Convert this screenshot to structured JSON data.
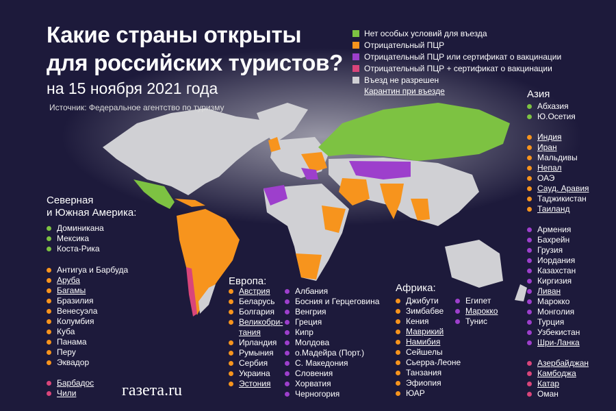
{
  "header": {
    "title": [
      "Какие страны открыты",
      "для российских туристов?"
    ],
    "date": "на 15 ноября 2021 года",
    "source": "Источник: Федеральное агентство по туризму"
  },
  "legend": {
    "items": [
      {
        "label": "Нет особых условий для въезда",
        "color": "#7dc242"
      },
      {
        "label": "Отрицательный ПЦР",
        "color": "#f7941d"
      },
      {
        "label": "Отрицательный ПЦР или сертификат о вакцинации",
        "color": "#9d3fcc"
      },
      {
        "label": "Отрицательный ПЦР + сертификат о вакцинации",
        "color": "#d9457a"
      },
      {
        "label": "Въезд не разрешен",
        "color": "#d0d0d4"
      }
    ],
    "quarantine_note": "Карантин при въезде"
  },
  "regions": [
    {
      "title": [
        "Северная",
        "и Южная Америка:"
      ],
      "groups": [
        {
          "color": "#7dc242",
          "countries": [
            {
              "name": "Доминикана"
            },
            {
              "name": "Мексика"
            },
            {
              "name": "Коста-Рика"
            }
          ]
        },
        {
          "color": "#f7941d",
          "countries": [
            {
              "name": "Антигуа и Барбуда"
            },
            {
              "name": "Аруба",
              "quarantine": true
            },
            {
              "name": "Багамы",
              "quarantine": true
            },
            {
              "name": "Бразилия"
            },
            {
              "name": "Венесуэла"
            },
            {
              "name": "Колумбия"
            },
            {
              "name": "Куба"
            },
            {
              "name": "Панама"
            },
            {
              "name": "Перу"
            },
            {
              "name": "Эквадор"
            }
          ]
        },
        {
          "color": "#d9457a",
          "countries": [
            {
              "name": "Барбадос",
              "quarantine": true
            },
            {
              "name": "Чили",
              "quarantine": true
            }
          ]
        }
      ]
    },
    {
      "title": [
        "Европа:"
      ],
      "groups": [
        {
          "color": "#f7941d",
          "countries": [
            {
              "name": "Австрия",
              "quarantine": true
            },
            {
              "name": "Беларусь"
            },
            {
              "name": "Болгария"
            },
            {
              "name": "Великобри-тания",
              "quarantine": true
            },
            {
              "name": "Ирландия"
            },
            {
              "name": "Румыния"
            },
            {
              "name": "Сербия"
            },
            {
              "name": "Украина"
            },
            {
              "name": "Эстония",
              "quarantine": true
            }
          ]
        },
        {
          "color": "#9d3fcc",
          "countries": [
            {
              "name": "Албания"
            },
            {
              "name": "Босния и Герцеговина"
            },
            {
              "name": "Венгрия"
            },
            {
              "name": "Греция"
            },
            {
              "name": "Кипр"
            },
            {
              "name": "Молдова"
            },
            {
              "name": "о.Мадейра (Порт.)"
            },
            {
              "name": "С. Македония"
            },
            {
              "name": "Словения"
            },
            {
              "name": "Хорватия"
            },
            {
              "name": "Черногория"
            }
          ]
        }
      ]
    },
    {
      "title": [
        "Африка:"
      ],
      "groups": [
        {
          "color": "#f7941d",
          "countries": [
            {
              "name": "Джибути"
            },
            {
              "name": "Зимбабве"
            },
            {
              "name": "Кения"
            },
            {
              "name": "Маврикий",
              "quarantine": true
            },
            {
              "name": "Намибия",
              "quarantine": true
            },
            {
              "name": "Сейшелы"
            },
            {
              "name": "Сьерра-Леоне"
            },
            {
              "name": "Танзания"
            },
            {
              "name": "Эфиопия"
            },
            {
              "name": "ЮАР"
            }
          ]
        },
        {
          "color": "#9d3fcc",
          "countries": [
            {
              "name": "Египет"
            },
            {
              "name": "Марокко",
              "quarantine": true
            },
            {
              "name": "Тунис"
            }
          ]
        }
      ]
    },
    {
      "title": [
        "Азия"
      ],
      "groups": [
        {
          "color": "#7dc242",
          "countries": [
            {
              "name": "Абхазия"
            },
            {
              "name": "Ю.Осетия"
            }
          ]
        },
        {
          "color": "#f7941d",
          "countries": [
            {
              "name": "Индия",
              "quarantine": true
            },
            {
              "name": "Иран",
              "quarantine": true
            },
            {
              "name": "Мальдивы"
            },
            {
              "name": "Непал",
              "quarantine": true
            },
            {
              "name": "ОАЭ"
            },
            {
              "name": "Сауд. Аравия",
              "quarantine": true
            },
            {
              "name": "Таджикистан"
            },
            {
              "name": "Таиланд",
              "quarantine": true
            }
          ]
        },
        {
          "color": "#9d3fcc",
          "countries": [
            {
              "name": "Армения"
            },
            {
              "name": "Бахрейн"
            },
            {
              "name": "Грузия"
            },
            {
              "name": "Иордания"
            },
            {
              "name": "Казахстан"
            },
            {
              "name": "Киргизия"
            },
            {
              "name": "Ливан",
              "quarantine": true
            },
            {
              "name": "Марокко"
            },
            {
              "name": "Монголия"
            },
            {
              "name": "Турция"
            },
            {
              "name": "Узбекистан"
            },
            {
              "name": "Шри-Ланка",
              "quarantine": true
            }
          ]
        },
        {
          "color": "#d9457a",
          "countries": [
            {
              "name": "Азербайджан",
              "quarantine": true
            },
            {
              "name": "Камбоджа",
              "quarantine": true
            },
            {
              "name": "Катар",
              "quarantine": true
            },
            {
              "name": "Оман"
            }
          ]
        }
      ]
    }
  ],
  "logo": "газета.ru"
}
